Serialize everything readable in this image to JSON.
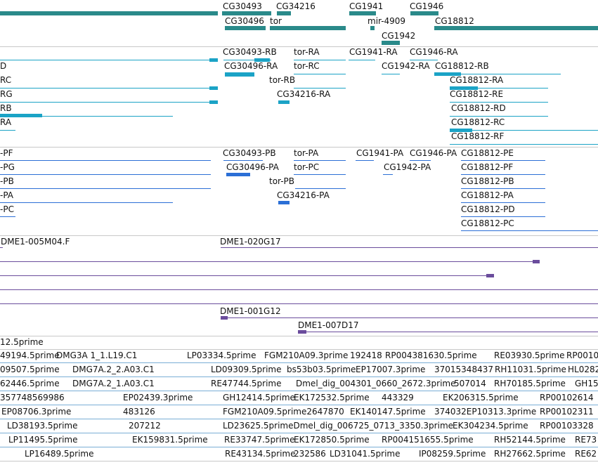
{
  "colors": {
    "gene": "#2a8a8a",
    "mrna": "#1ba3c6",
    "protein": "#2b6fd6",
    "clone": "#6a4c9c",
    "est": "#7aaed6",
    "separator": "#c8c8c8"
  },
  "tracks": [
    {
      "name": "gene",
      "color": "gene",
      "labels": [
        "CG30493",
        "CG34216",
        "CG1941",
        "CG1946",
        "CG30496",
        "tor",
        "mir-4909",
        "CG18812",
        "CG1942"
      ]
    },
    {
      "name": "mrna",
      "color": "mrna",
      "labels": [
        "CG30493-RB",
        "tor-RA",
        "CG1941-RA",
        "CG1946-RA",
        "D",
        "CG30496-RA",
        "tor-RC",
        "CG1942-RA",
        "CG18812-RB",
        "RC",
        "tor-RB",
        "CG18812-RA",
        "RG",
        "CG34216-RA",
        "CG18812-RE",
        "RB",
        "CG18812-RD",
        "RA",
        "CG18812-RC",
        "CG18812-RF"
      ]
    },
    {
      "name": "protein",
      "color": "protein",
      "labels": [
        "-PF",
        "CG30493-PB",
        "tor-PA",
        "CG1941-PA",
        "CG1946-PA",
        "CG18812-PE",
        "-PG",
        "CG30496-PA",
        "tor-PC",
        "CG1942-PA",
        "CG18812-PF",
        "-PB",
        "tor-PB",
        "CG18812-PB",
        "-PA",
        "CG34216-PA",
        "CG18812-PA",
        "-PC",
        "CG18812-PD",
        "CG18812-PC"
      ]
    },
    {
      "name": "clone",
      "color": "clone",
      "labels": [
        "DME1-005M04.F",
        "DME1-020G17",
        "DME1-001G12",
        "DME1-007D17"
      ]
    },
    {
      "name": "est",
      "color": "est",
      "labels": [
        "12.5prime",
        "49194.5prime",
        "DMG3A 1_1.L19.C1",
        "LP03334.5prime",
        "FGM210A09.3prime",
        "192418",
        "RP004381630.5prime",
        "RE03930.5prime",
        "RP0010",
        "09507.5prime",
        "DMG7A.2_2.A03.C1",
        "LD09309.5prime",
        "bs53b03.5prime",
        "EP17007.3prime",
        "37015348437",
        "RH11031.5prime",
        "HL0282",
        "62446.5prime",
        "DMG7A.2_1.A03.C1",
        "RE47744.5prime",
        "Dmel_dig_004301_0660_2672.3prime",
        "507014",
        "RH70185.5prime",
        "GH15",
        "357748569986",
        "EP02439.3prime",
        "GH12414.5prime",
        "EK172532.5prime",
        "443329",
        "EK206315.5prime",
        "RP00102614",
        "EP08706.3prime",
        "483126",
        "FGM210A09.5prime2647870",
        "EK140147.5prime",
        "374032EP10313.3prime",
        "RP00102311",
        "LD38193.5prime",
        "207212",
        "LD23625.5primeDmel_dig_006725_0713_3350.3prime",
        "EK304234.5prime",
        "RP00103328",
        "LP11495.5prime",
        "EK159831.5prime",
        "RE33747.5prime",
        "EK172850.5prime",
        "RP004151655.5prime",
        "RH52144.5prime",
        "RE73",
        "LP16489.5prime",
        "RE43134.5prime",
        "232586",
        "LD31041.5prime",
        "IP08259.5prime",
        "RH27662.5prime",
        "RE62"
      ]
    }
  ]
}
